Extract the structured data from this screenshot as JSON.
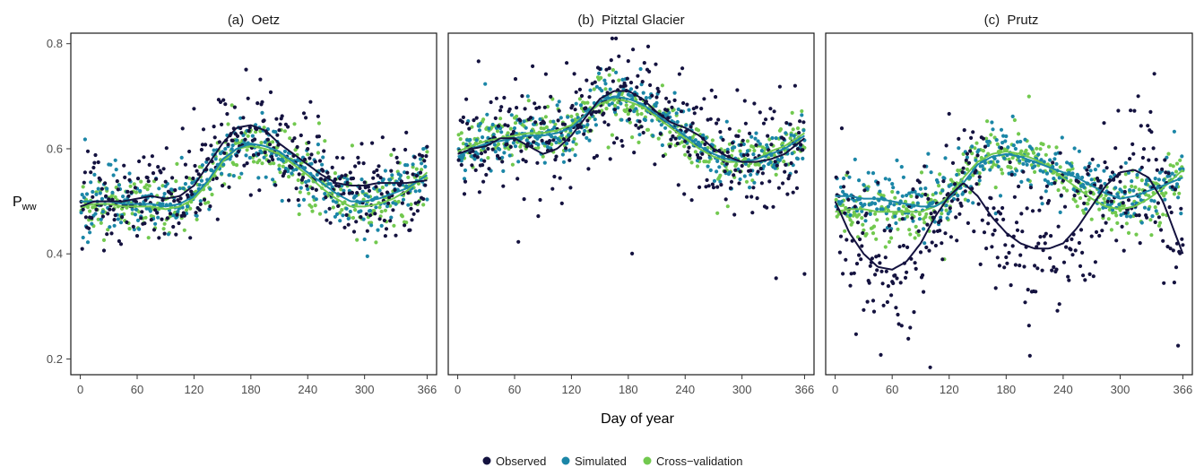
{
  "colors": {
    "observed": "#14123f",
    "simulated": "#1b86a7",
    "cross_validation": "#72c94f"
  },
  "chart_data": {
    "type": "scatter",
    "ylabel": "P",
    "ylabel_subscript": "ww",
    "xlabel": "Day of year",
    "x_ticks": [
      "0",
      "60",
      "120",
      "180",
      "240",
      "300",
      "366"
    ],
    "x_tick_values": [
      0,
      60,
      120,
      180,
      240,
      300,
      366
    ],
    "xlim": [
      -10,
      376
    ],
    "y_ticks": [
      "0.2",
      "0.4",
      "0.6",
      "0.8"
    ],
    "y_tick_values": [
      0.2,
      0.4,
      0.6,
      0.8
    ],
    "ylim": [
      0.17,
      0.82
    ],
    "grid": false,
    "legend_position": "bottom",
    "legend": [
      "Observed",
      "Simulated",
      "Cross−validation"
    ],
    "smoothed_lines": true,
    "panels": [
      {
        "title": "(a)  Oetz",
        "series": [
          {
            "name": "Observed",
            "x": [
              0,
              15,
              30,
              45,
              60,
              75,
              90,
              105,
              120,
              135,
              150,
              165,
              180,
              195,
              210,
              225,
              240,
              255,
              270,
              285,
              300,
              315,
              330,
              345,
              366
            ],
            "y": [
              0.49,
              0.5,
              0.5,
              0.5,
              0.505,
              0.51,
              0.505,
              0.51,
              0.53,
              0.57,
              0.61,
              0.64,
              0.645,
              0.635,
              0.61,
              0.59,
              0.57,
              0.55,
              0.535,
              0.53,
              0.53,
              0.535,
              0.535,
              0.535,
              0.54
            ],
            "spread": 0.06
          },
          {
            "name": "Simulated",
            "x": [
              0,
              15,
              30,
              45,
              60,
              75,
              90,
              105,
              120,
              135,
              150,
              165,
              180,
              195,
              210,
              225,
              240,
              255,
              270,
              285,
              300,
              315,
              330,
              345,
              366
            ],
            "y": [
              0.5,
              0.5,
              0.5,
              0.495,
              0.495,
              0.495,
              0.49,
              0.495,
              0.51,
              0.54,
              0.58,
              0.6,
              0.61,
              0.605,
              0.595,
              0.575,
              0.555,
              0.535,
              0.515,
              0.5,
              0.5,
              0.505,
              0.515,
              0.525,
              0.55
            ],
            "spread": 0.035
          },
          {
            "name": "Cross−validation",
            "x": [
              0,
              15,
              30,
              45,
              60,
              75,
              90,
              105,
              120,
              135,
              150,
              165,
              180,
              195,
              210,
              225,
              240,
              255,
              270,
              285,
              300,
              315,
              330,
              345,
              366
            ],
            "y": [
              0.49,
              0.495,
              0.495,
              0.49,
              0.49,
              0.49,
              0.485,
              0.49,
              0.505,
              0.535,
              0.575,
              0.6,
              0.605,
              0.6,
              0.59,
              0.57,
              0.55,
              0.525,
              0.505,
              0.49,
              0.49,
              0.495,
              0.505,
              0.52,
              0.555
            ],
            "spread": 0.035
          }
        ]
      },
      {
        "title": "(b)  Pitztal Glacier",
        "series": [
          {
            "name": "Observed",
            "x": [
              0,
              15,
              30,
              45,
              60,
              75,
              90,
              105,
              120,
              135,
              150,
              165,
              180,
              195,
              210,
              225,
              240,
              255,
              270,
              285,
              300,
              315,
              330,
              345,
              366
            ],
            "y": [
              0.59,
              0.6,
              0.605,
              0.62,
              0.62,
              0.605,
              0.59,
              0.6,
              0.625,
              0.66,
              0.695,
              0.71,
              0.71,
              0.695,
              0.67,
              0.65,
              0.64,
              0.625,
              0.6,
              0.585,
              0.575,
              0.575,
              0.58,
              0.59,
              0.62
            ],
            "spread": 0.07
          },
          {
            "name": "Simulated",
            "x": [
              0,
              15,
              30,
              45,
              60,
              75,
              90,
              105,
              120,
              135,
              150,
              165,
              180,
              195,
              210,
              225,
              240,
              255,
              270,
              285,
              300,
              315,
              330,
              345,
              366
            ],
            "y": [
              0.585,
              0.6,
              0.61,
              0.615,
              0.62,
              0.625,
              0.625,
              0.63,
              0.64,
              0.665,
              0.69,
              0.7,
              0.695,
              0.685,
              0.665,
              0.645,
              0.625,
              0.605,
              0.59,
              0.58,
              0.575,
              0.58,
              0.59,
              0.6,
              0.625
            ],
            "spread": 0.03
          },
          {
            "name": "Cross−validation",
            "x": [
              0,
              15,
              30,
              45,
              60,
              75,
              90,
              105,
              120,
              135,
              150,
              165,
              180,
              195,
              210,
              225,
              240,
              255,
              270,
              285,
              300,
              315,
              330,
              345,
              366
            ],
            "y": [
              0.595,
              0.605,
              0.615,
              0.62,
              0.625,
              0.63,
              0.63,
              0.635,
              0.645,
              0.665,
              0.685,
              0.695,
              0.69,
              0.68,
              0.66,
              0.64,
              0.62,
              0.6,
              0.585,
              0.575,
              0.575,
              0.58,
              0.595,
              0.605,
              0.63
            ],
            "spread": 0.03
          }
        ]
      },
      {
        "title": "(c)  Prutz",
        "series": [
          {
            "name": "Observed",
            "x": [
              0,
              15,
              30,
              45,
              60,
              75,
              90,
              105,
              120,
              135,
              150,
              165,
              180,
              195,
              210,
              225,
              240,
              255,
              270,
              285,
              300,
              315,
              330,
              345,
              366
            ],
            "y": [
              0.5,
              0.44,
              0.4,
              0.375,
              0.37,
              0.385,
              0.42,
              0.47,
              0.51,
              0.535,
              0.51,
              0.47,
              0.44,
              0.42,
              0.41,
              0.41,
              0.42,
              0.45,
              0.49,
              0.53,
              0.555,
              0.56,
              0.545,
              0.5,
              0.4
            ],
            "spread": 0.09
          },
          {
            "name": "Simulated",
            "x": [
              0,
              15,
              30,
              45,
              60,
              75,
              90,
              105,
              120,
              135,
              150,
              165,
              180,
              195,
              210,
              225,
              240,
              255,
              270,
              285,
              300,
              315,
              330,
              345,
              366
            ],
            "y": [
              0.51,
              0.51,
              0.505,
              0.505,
              0.5,
              0.495,
              0.49,
              0.49,
              0.505,
              0.535,
              0.57,
              0.585,
              0.59,
              0.585,
              0.575,
              0.565,
              0.555,
              0.545,
              0.53,
              0.515,
              0.505,
              0.51,
              0.52,
              0.53,
              0.545
            ],
            "spread": 0.035
          },
          {
            "name": "Cross−validation",
            "x": [
              0,
              15,
              30,
              45,
              60,
              75,
              90,
              105,
              120,
              135,
              150,
              165,
              180,
              195,
              210,
              225,
              240,
              255,
              270,
              285,
              300,
              315,
              330,
              345,
              366
            ],
            "y": [
              0.48,
              0.485,
              0.485,
              0.48,
              0.48,
              0.48,
              0.48,
              0.49,
              0.51,
              0.545,
              0.575,
              0.59,
              0.595,
              0.59,
              0.58,
              0.565,
              0.545,
              0.525,
              0.505,
              0.49,
              0.485,
              0.49,
              0.505,
              0.525,
              0.56
            ],
            "spread": 0.035
          }
        ]
      }
    ]
  }
}
